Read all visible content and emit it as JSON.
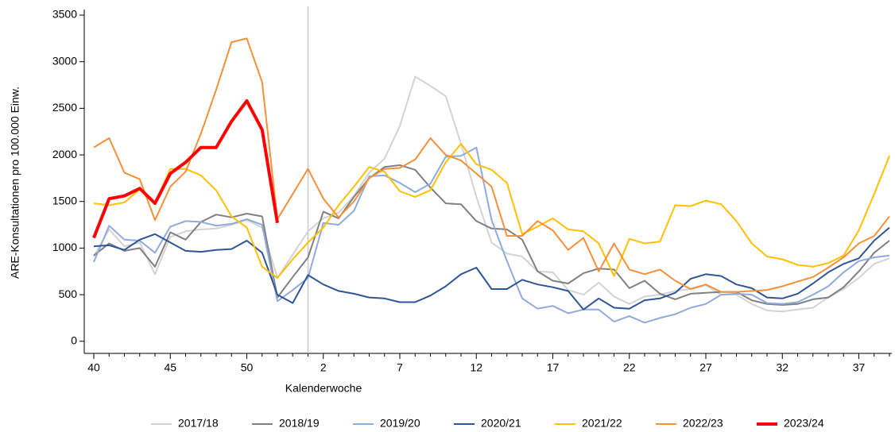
{
  "chart_data": {
    "type": "line",
    "y_label": "ARE-Konsultationen pro 100.000 Einw.",
    "x_label": "Kalenderwoche",
    "categories": [
      "40",
      null,
      null,
      null,
      null,
      "45",
      null,
      null,
      null,
      null,
      "50",
      null,
      null,
      null,
      null,
      "2",
      null,
      null,
      null,
      null,
      "7",
      null,
      null,
      null,
      null,
      "12",
      null,
      null,
      null,
      null,
      "17",
      null,
      null,
      null,
      null,
      "22",
      null,
      null,
      null,
      null,
      "27",
      null,
      null,
      null,
      null,
      "32",
      null,
      null,
      null,
      null,
      "37",
      null,
      null
    ],
    "vline_index": 14,
    "ylim": [
      -130,
      3560
    ],
    "yticks": [
      0,
      500,
      1000,
      1500,
      2000,
      2500,
      3000,
      3500
    ],
    "legend": "bottom",
    "series": [
      {
        "name": "2017/18",
        "color": "#d3d3d3",
        "line_width": 2,
        "values": [
          910,
          1200,
          1020,
          1060,
          720,
          1120,
          1180,
          1200,
          1210,
          1250,
          1300,
          1220,
          680,
          930,
          1180,
          1320,
          1380,
          1560,
          1810,
          1960,
          2310,
          2840,
          2740,
          2630,
          2120,
          1550,
          1060,
          940,
          910,
          750,
          740,
          550,
          500,
          630,
          480,
          400,
          480,
          500,
          540,
          560,
          600,
          500,
          500,
          400,
          330,
          320,
          340,
          360,
          470,
          560,
          680,
          830,
          890
        ]
      },
      {
        "name": "2018/19",
        "color": "#808080",
        "line_width": 2,
        "values": [
          920,
          1050,
          970,
          1000,
          800,
          1170,
          1090,
          1280,
          1360,
          1330,
          1370,
          1340,
          470,
          690,
          900,
          1390,
          1320,
          1550,
          1750,
          1870,
          1890,
          1840,
          1650,
          1480,
          1470,
          1290,
          1210,
          1200,
          1090,
          750,
          650,
          620,
          730,
          780,
          770,
          570,
          650,
          510,
          450,
          510,
          520,
          530,
          530,
          440,
          400,
          390,
          400,
          450,
          470,
          580,
          750,
          950,
          1080
        ]
      },
      {
        "name": "2019/20",
        "color": "#8faadc",
        "line_width": 2,
        "values": [
          850,
          1240,
          1090,
          1080,
          950,
          1230,
          1290,
          1280,
          1240,
          1260,
          1310,
          1250,
          430,
          550,
          680,
          1270,
          1250,
          1400,
          1770,
          1780,
          1700,
          1600,
          1690,
          1980,
          1990,
          2080,
          1300,
          860,
          460,
          350,
          380,
          300,
          340,
          340,
          210,
          270,
          200,
          250,
          290,
          360,
          400,
          500,
          510,
          500,
          410,
          400,
          420,
          500,
          590,
          740,
          860,
          900,
          920
        ]
      },
      {
        "name": "2020/21",
        "color": "#2f5597",
        "line_width": 2,
        "values": [
          1020,
          1030,
          980,
          1090,
          1150,
          1060,
          970,
          960,
          980,
          990,
          1080,
          950,
          500,
          410,
          710,
          610,
          540,
          510,
          470,
          460,
          420,
          420,
          490,
          590,
          720,
          790,
          560,
          560,
          660,
          610,
          580,
          540,
          340,
          460,
          360,
          350,
          440,
          460,
          520,
          670,
          720,
          700,
          610,
          570,
          470,
          460,
          510,
          620,
          740,
          830,
          890,
          1080,
          1220
        ]
      },
      {
        "name": "2021/22",
        "color": "#ffc000",
        "line_width": 2,
        "values": [
          1480,
          1460,
          1490,
          1630,
          1480,
          1850,
          1850,
          1780,
          1620,
          1340,
          1220,
          800,
          680,
          880,
          1060,
          1220,
          1460,
          1660,
          1870,
          1820,
          1610,
          1550,
          1620,
          1920,
          2120,
          1900,
          1840,
          1700,
          1150,
          1230,
          1320,
          1200,
          1180,
          1050,
          700,
          1100,
          1050,
          1070,
          1460,
          1450,
          1510,
          1470,
          1290,
          1050,
          910,
          880,
          820,
          800,
          840,
          920,
          1190,
          1580,
          1990
        ]
      },
      {
        "name": "2022/23",
        "color": "#f4903a",
        "line_width": 2,
        "values": [
          2080,
          2180,
          1810,
          1740,
          1300,
          1660,
          1820,
          2230,
          2700,
          3210,
          3250,
          2780,
          1310,
          1580,
          1850,
          1530,
          1330,
          1500,
          1750,
          1850,
          1860,
          1950,
          2180,
          2000,
          1940,
          1800,
          1660,
          1130,
          1130,
          1290,
          1190,
          980,
          1110,
          750,
          1050,
          770,
          720,
          770,
          650,
          560,
          610,
          530,
          530,
          540,
          550,
          590,
          640,
          690,
          790,
          900,
          1050,
          1130,
          1340
        ]
      },
      {
        "name": "2023/24",
        "color": "#ff0000",
        "line_width": 4,
        "values": [
          1110,
          1530,
          1560,
          1640,
          1480,
          1800,
          1920,
          2080,
          2080,
          2360,
          2580,
          2270,
          1270,
          null,
          null,
          null,
          null,
          null,
          null,
          null,
          null,
          null,
          null,
          null,
          null,
          null,
          null,
          null,
          null,
          null,
          null,
          null,
          null,
          null,
          null,
          null,
          null,
          null,
          null,
          null,
          null,
          null,
          null,
          null,
          null,
          null,
          null,
          null,
          null,
          null,
          null,
          null,
          null
        ]
      }
    ]
  }
}
